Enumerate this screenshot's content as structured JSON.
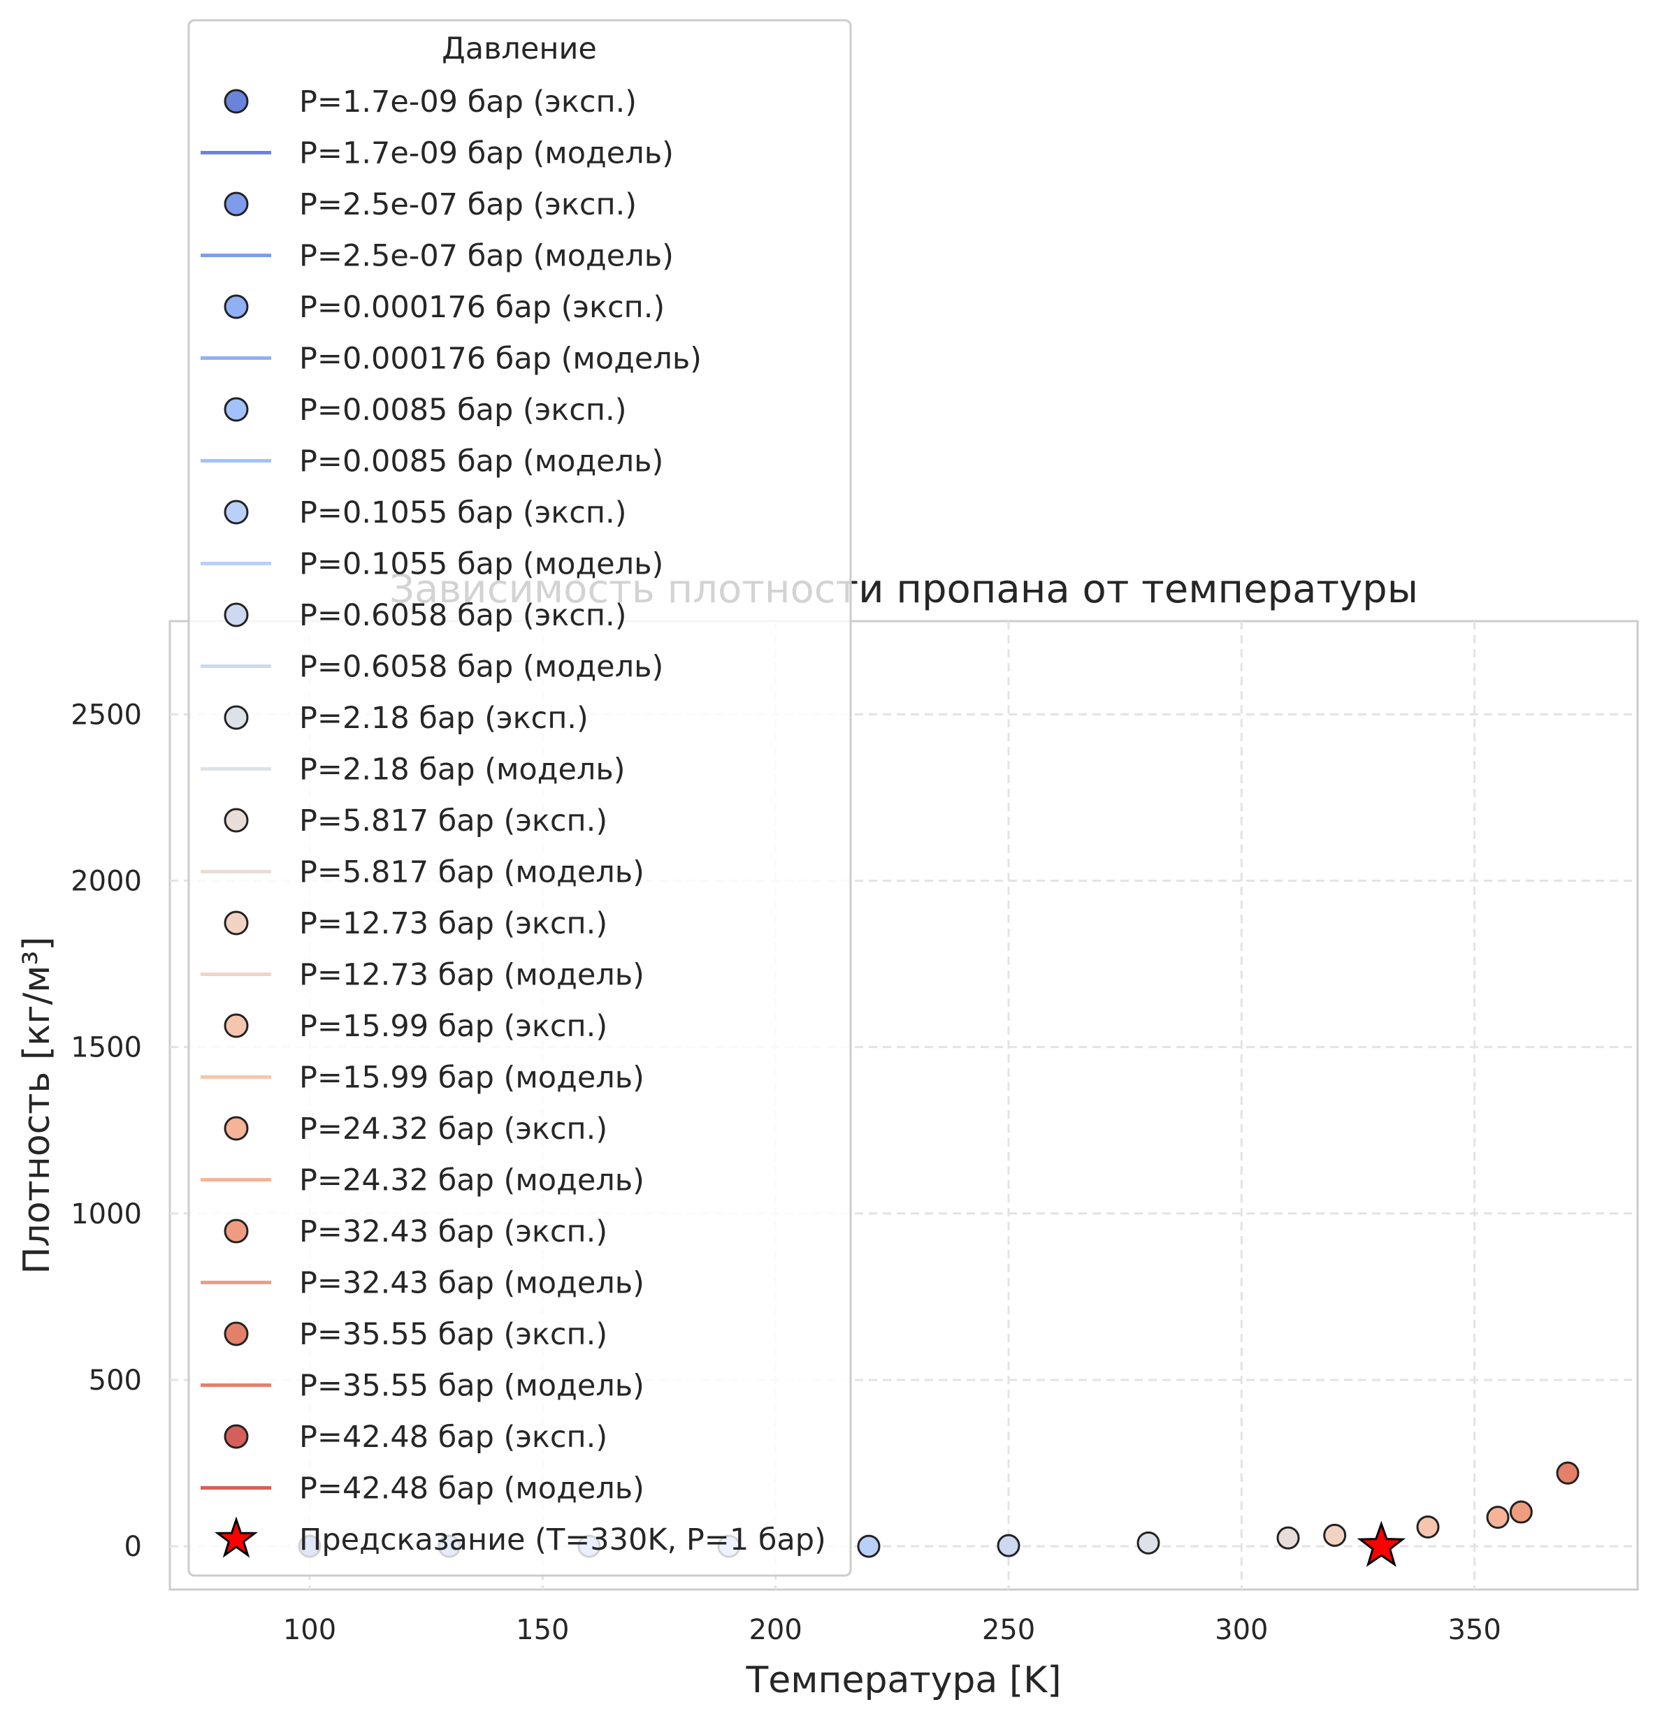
{
  "chart_data": {
    "type": "scatter",
    "title": "Зависимость плотности пропана от температуры",
    "xlabel": "Температура [K]",
    "ylabel": "Плотность [кг/м³]",
    "xlim": [
      70,
      385
    ],
    "ylim": [
      -130,
      2780
    ],
    "xticks": [
      100,
      150,
      200,
      250,
      300,
      350
    ],
    "yticks": [
      0,
      500,
      1000,
      1500,
      2000,
      2500
    ],
    "grid": true,
    "legend_title": "Давление",
    "legend_placement": "upper-left",
    "series": [
      {
        "name": "P=1.7e-09 бар (эксп.)",
        "model_name": "P=1.7e-09 бар (модель)",
        "color": "#6b84db",
        "x": [
          100
        ],
        "y": [
          0
        ]
      },
      {
        "name": "P=2.5e-07 бар (эксп.)",
        "model_name": "P=2.5e-07 бар (модель)",
        "color": "#7d9cec",
        "x": [
          130
        ],
        "y": [
          0
        ]
      },
      {
        "name": "P=0.000176 бар (эксп.)",
        "model_name": "P=0.000176 бар (модель)",
        "color": "#90b0f6",
        "x": [
          160
        ],
        "y": [
          0
        ]
      },
      {
        "name": "P=0.0085 бар (эксп.)",
        "model_name": "P=0.0085 бар (модель)",
        "color": "#a3c1fb",
        "x": [
          190
        ],
        "y": [
          0
        ]
      },
      {
        "name": "P=0.1055 бар (эксп.)",
        "model_name": "P=0.1055 бар (модель)",
        "color": "#b9d0f9",
        "x": [
          220
        ],
        "y": [
          0
        ]
      },
      {
        "name": "P=0.6058 бар (эксп.)",
        "model_name": "P=0.6058 бар (модель)",
        "color": "#ccd9f0",
        "x": [
          250
        ],
        "y": [
          2
        ]
      },
      {
        "name": "P=2.18 бар (эксп.)",
        "model_name": "P=2.18 бар (модель)",
        "color": "#dde1e8",
        "x": [
          280
        ],
        "y": [
          10
        ]
      },
      {
        "name": "P=5.817 бар (эксп.)",
        "model_name": "P=5.817 бар (модель)",
        "color": "#e9ddd8",
        "x": [
          310
        ],
        "y": [
          25
        ]
      },
      {
        "name": "P=12.73 бар (эксп.)",
        "model_name": "P=12.73 бар (модель)",
        "color": "#f2d3c3",
        "x": [
          320
        ],
        "y": [
          33
        ]
      },
      {
        "name": "P=15.99 бар (эксп.)",
        "model_name": "P=15.99 бар (модель)",
        "color": "#f6c5ad",
        "x": [
          340
        ],
        "y": [
          58
        ]
      },
      {
        "name": "P=24.32 бар (эксп.)",
        "model_name": "P=24.32 бар (модель)",
        "color": "#f5b398",
        "x": [
          355
        ],
        "y": [
          87
        ]
      },
      {
        "name": "P=32.43 бар (эксп.)",
        "model_name": "P=32.43 бар (модель)",
        "color": "#ef9c80",
        "x": [
          360
        ],
        "y": [
          103
        ]
      },
      {
        "name": "P=35.55 бар (эксп.)",
        "model_name": "P=35.55 бар (модель)",
        "color": "#e4806a",
        "x": [
          370
        ],
        "y": [
          220
        ]
      },
      {
        "name": "P=42.48 бар (эксп.)",
        "model_name": "P=42.48 бар (модель)",
        "color": "#d65f5a",
        "x": [],
        "y": []
      }
    ],
    "prediction": {
      "name": "Предсказание (T=330K, P=1 бар)",
      "color": "#ff0000",
      "x": 330,
      "y": 0
    }
  }
}
